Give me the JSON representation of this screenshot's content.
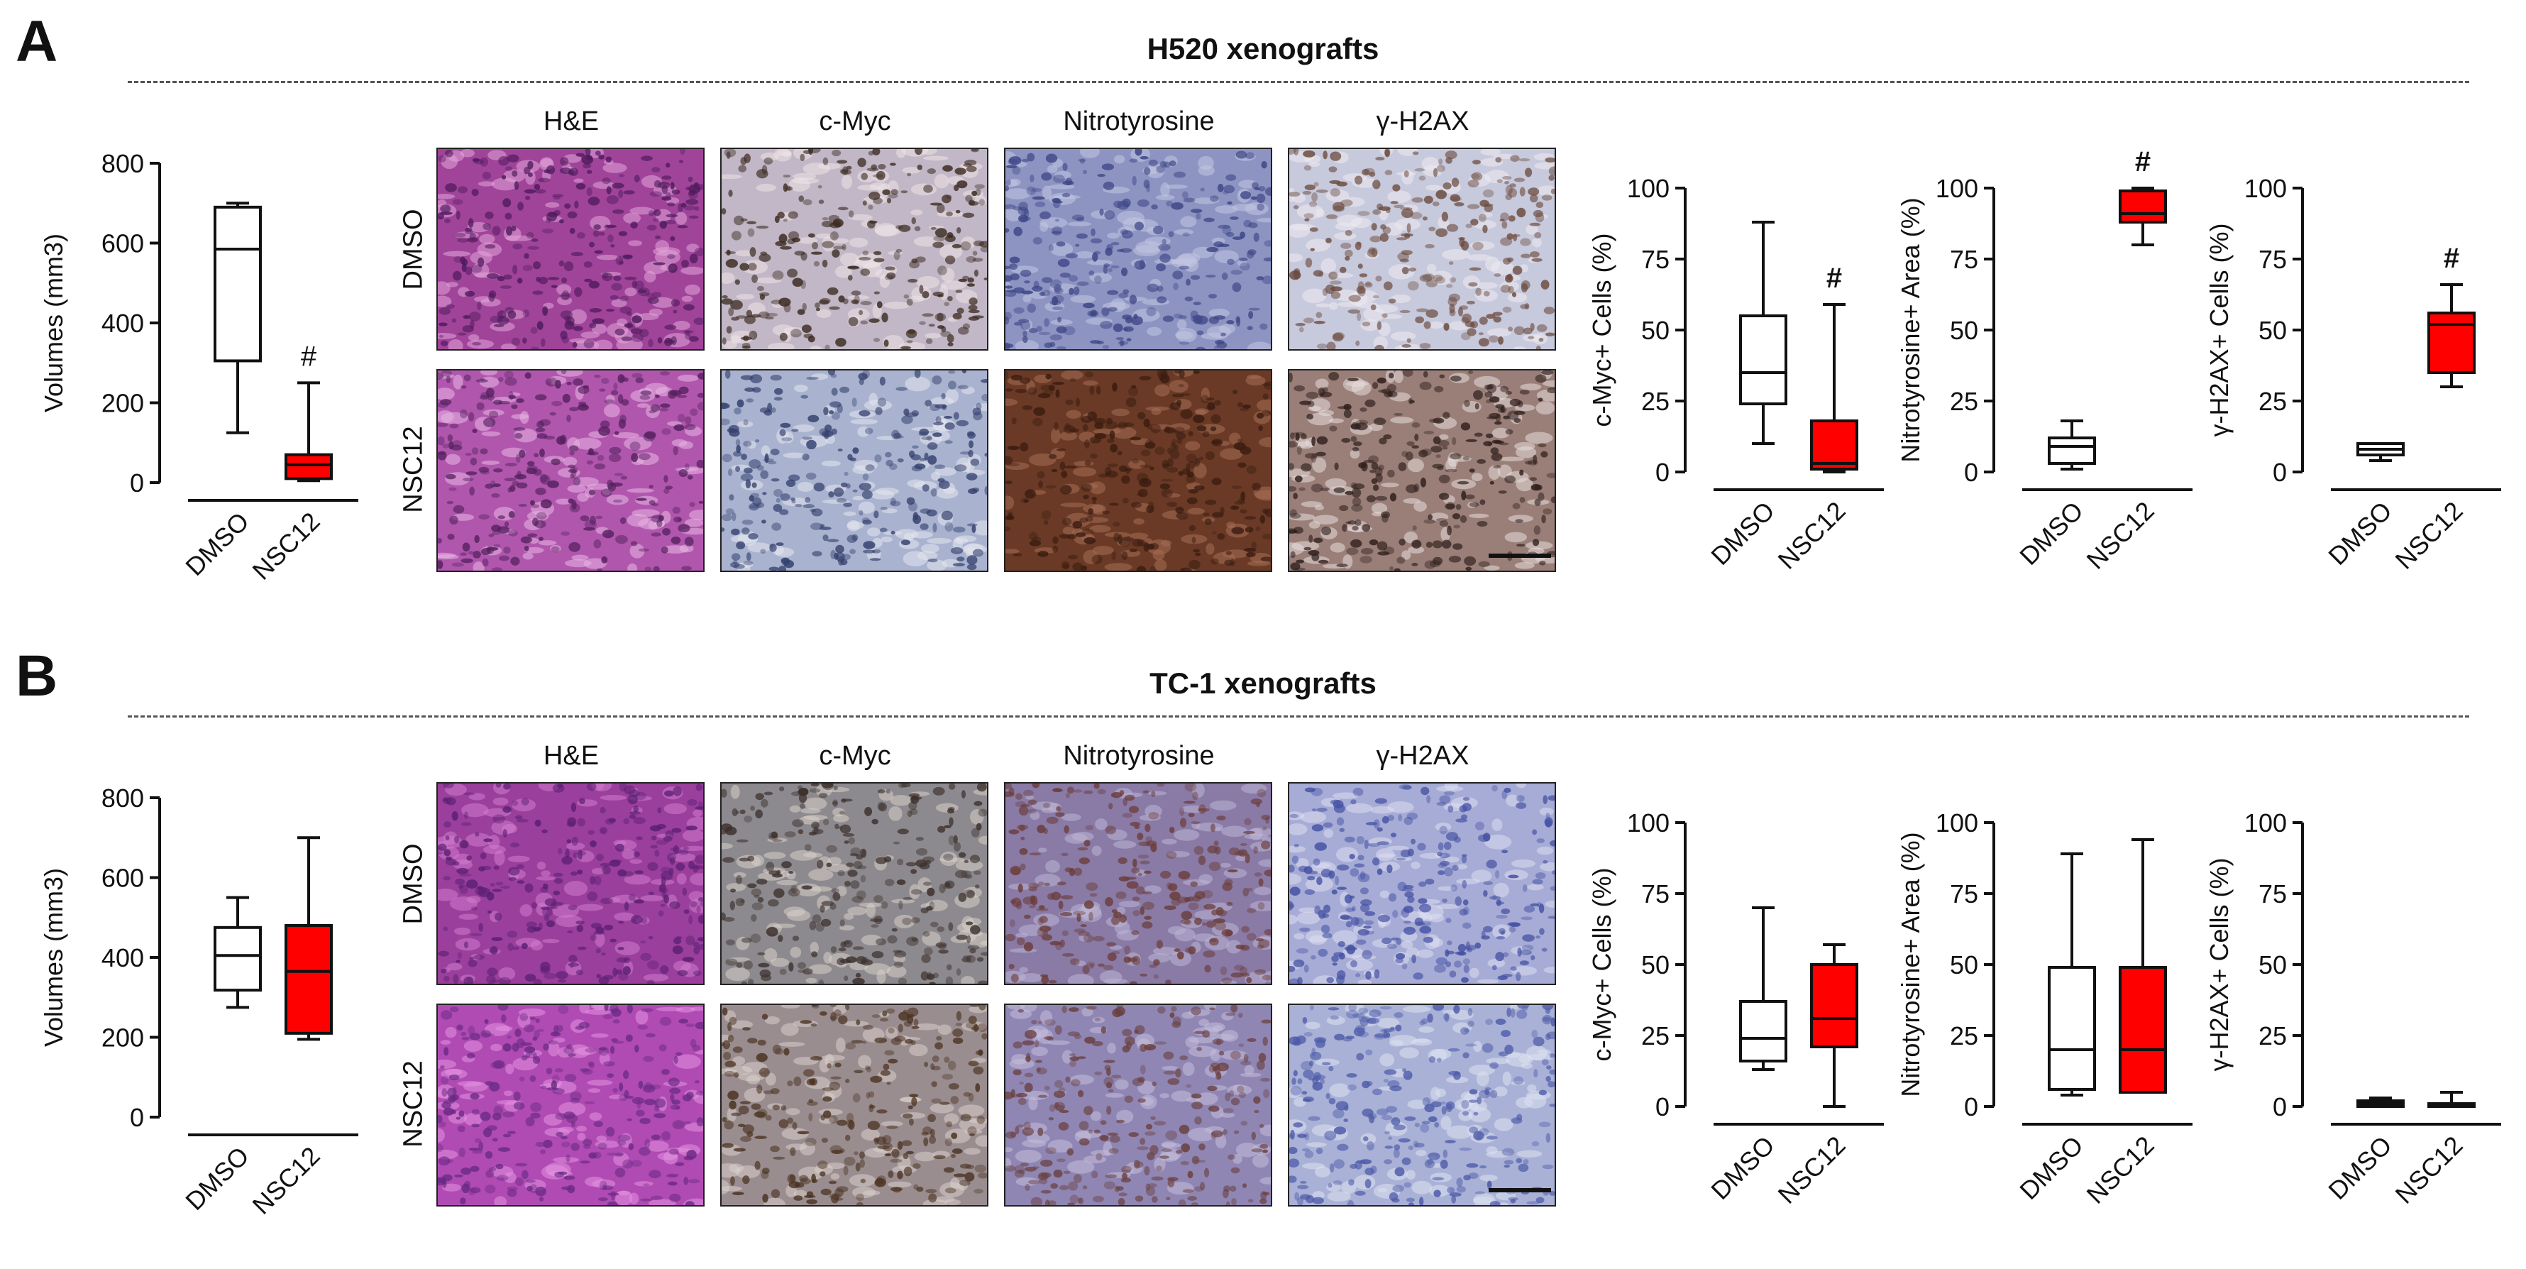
{
  "panels": [
    {
      "id": "A",
      "label": "A",
      "title": "H520 xenografts",
      "columns": [
        "H&E",
        "c-Myc",
        "Nitrotyrosine",
        "γ-H2AX"
      ],
      "rows": [
        "DMSO",
        "NSC12"
      ],
      "images": [
        [
          {
            "base": "#a0449a",
            "spot": "#4e1a5c",
            "light": "#e3a6db"
          },
          {
            "base": "#c1b7c6",
            "spot": "#3b2a20",
            "light": "#eee3e6"
          },
          {
            "base": "#8d94c2",
            "spot": "#3d4585",
            "light": "#c3c7e2"
          },
          {
            "base": "#c7c9dc",
            "spot": "#6b4a3d",
            "light": "#eceaf0"
          }
        ],
        [
          {
            "base": "#b057ad",
            "spot": "#54205e",
            "light": "#eab6e3"
          },
          {
            "base": "#a9b3cf",
            "spot": "#34406e",
            "light": "#e4e6ef"
          },
          {
            "base": "#6a3a26",
            "spot": "#3a1c10",
            "light": "#a56d54"
          },
          {
            "base": "#9a7f78",
            "spot": "#2f1f1c",
            "light": "#e8dcdc"
          }
        ]
      ]
    },
    {
      "id": "B",
      "label": "B",
      "title": "TC-1 xenografts",
      "columns": [
        "H&E",
        "c-Myc",
        "Nitrotyrosine",
        "γ-H2AX"
      ],
      "rows": [
        "DMSO",
        "NSC12"
      ],
      "images": [
        [
          {
            "base": "#9a3f9c",
            "spot": "#5a1f72",
            "light": "#d27ccd"
          },
          {
            "base": "#8d8a8f",
            "spot": "#3c302c",
            "light": "#d7cfc9"
          },
          {
            "base": "#8a7aa6",
            "spot": "#6a3d3a",
            "light": "#bcb4d4"
          },
          {
            "base": "#a7acd6",
            "spot": "#4450a2",
            "light": "#dcdff0"
          }
        ],
        [
          {
            "base": "#b04bb3",
            "spot": "#6a2a84",
            "light": "#e494e0"
          },
          {
            "base": "#9a8d90",
            "spot": "#4a3220",
            "light": "#d8cfca"
          },
          {
            "base": "#8f86b4",
            "spot": "#6a4040",
            "light": "#c4bedb"
          },
          {
            "base": "#a9b1d6",
            "spot": "#4d5aa8",
            "light": "#dde1f0"
          }
        ]
      ]
    }
  ],
  "chart_data": [
    {
      "panel": "A",
      "type": "box",
      "ylabel": "Volumes (mm3)",
      "ylim": [
        0,
        800
      ],
      "yticks": [
        0,
        200,
        400,
        600,
        800
      ],
      "categories": [
        "DMSO",
        "NSC12"
      ],
      "boxes": [
        {
          "min": 125,
          "q1": 305,
          "median": 585,
          "q3": 690,
          "max": 700,
          "fill": "#ffffff"
        },
        {
          "min": 5,
          "q1": 10,
          "median": 45,
          "q3": 70,
          "max": 250,
          "fill": "#ff0000"
        }
      ],
      "annotations": [
        {
          "category": "NSC12",
          "text": "#"
        }
      ]
    },
    {
      "panel": "A",
      "type": "box",
      "ylabel": "c-Myc+ Cells (%)",
      "ylim": [
        0,
        100
      ],
      "yticks": [
        0,
        25,
        50,
        75,
        100
      ],
      "categories": [
        "DMSO",
        "NSC12"
      ],
      "boxes": [
        {
          "min": 10,
          "q1": 24,
          "median": 35,
          "q3": 55,
          "max": 88,
          "fill": "#ffffff"
        },
        {
          "min": 0,
          "q1": 1,
          "median": 3,
          "q3": 18,
          "max": 59,
          "fill": "#ff0000"
        }
      ],
      "annotations": [
        {
          "category": "NSC12",
          "text": "#"
        }
      ]
    },
    {
      "panel": "A",
      "type": "box",
      "ylabel": "Nitrotyrosine+ Area (%)",
      "ylim": [
        0,
        100
      ],
      "yticks": [
        0,
        25,
        50,
        75,
        100
      ],
      "categories": [
        "DMSO",
        "NSC12"
      ],
      "boxes": [
        {
          "min": 1,
          "q1": 3,
          "median": 9,
          "q3": 12,
          "max": 18,
          "fill": "#ffffff"
        },
        {
          "min": 80,
          "q1": 88,
          "median": 91,
          "q3": 99,
          "max": 100,
          "fill": "#ff0000"
        }
      ],
      "annotations": [
        {
          "category": "NSC12",
          "text": "#"
        }
      ]
    },
    {
      "panel": "A",
      "type": "box",
      "ylabel": "γ-H2AX+ Cells (%)",
      "ylim": [
        0,
        100
      ],
      "yticks": [
        0,
        25,
        50,
        75,
        100
      ],
      "categories": [
        "DMSO",
        "NSC12"
      ],
      "boxes": [
        {
          "min": 4,
          "q1": 6,
          "median": 8,
          "q3": 10,
          "max": 10,
          "fill": "#ffffff"
        },
        {
          "min": 30,
          "q1": 35,
          "median": 52,
          "q3": 56,
          "max": 66,
          "fill": "#ff0000"
        }
      ],
      "annotations": [
        {
          "category": "NSC12",
          "text": "#"
        }
      ]
    },
    {
      "panel": "B",
      "type": "box",
      "ylabel": "Volumes (mm3)",
      "ylim": [
        0,
        800
      ],
      "yticks": [
        0,
        200,
        400,
        600,
        800
      ],
      "categories": [
        "DMSO",
        "NSC12"
      ],
      "boxes": [
        {
          "min": 275,
          "q1": 318,
          "median": 405,
          "q3": 475,
          "max": 550,
          "fill": "#ffffff"
        },
        {
          "min": 195,
          "q1": 210,
          "median": 365,
          "q3": 480,
          "max": 700,
          "fill": "#ff0000"
        }
      ],
      "annotations": []
    },
    {
      "panel": "B",
      "type": "box",
      "ylabel": "c-Myc+ Cells (%)",
      "ylim": [
        0,
        100
      ],
      "yticks": [
        0,
        25,
        50,
        75,
        100
      ],
      "categories": [
        "DMSO",
        "NSC12"
      ],
      "boxes": [
        {
          "min": 13,
          "q1": 16,
          "median": 24,
          "q3": 37,
          "max": 70,
          "fill": "#ffffff"
        },
        {
          "min": 0,
          "q1": 21,
          "median": 31,
          "q3": 50,
          "max": 57,
          "fill": "#ff0000"
        }
      ],
      "annotations": []
    },
    {
      "panel": "B",
      "type": "box",
      "ylabel": "Nitrotyrosine+ Area (%)",
      "ylim": [
        0,
        100
      ],
      "yticks": [
        0,
        25,
        50,
        75,
        100
      ],
      "categories": [
        "DMSO",
        "NSC12"
      ],
      "boxes": [
        {
          "min": 4,
          "q1": 6,
          "median": 20,
          "q3": 49,
          "max": 89,
          "fill": "#ffffff"
        },
        {
          "min": 5,
          "q1": 5,
          "median": 20,
          "q3": 49,
          "max": 94,
          "fill": "#ff0000"
        }
      ],
      "annotations": []
    },
    {
      "panel": "B",
      "type": "box",
      "ylabel": "γ-H2AX+ Cells (%)",
      "ylim": [
        0,
        100
      ],
      "yticks": [
        0,
        25,
        50,
        75,
        100
      ],
      "categories": [
        "DMSO",
        "NSC12"
      ],
      "boxes": [
        {
          "min": 0,
          "q1": 0,
          "median": 1,
          "q3": 2,
          "max": 3,
          "fill": "#ffffff"
        },
        {
          "min": 0,
          "q1": 0,
          "median": 0,
          "q3": 1,
          "max": 5,
          "fill": "#ff0000"
        }
      ],
      "annotations": []
    }
  ]
}
